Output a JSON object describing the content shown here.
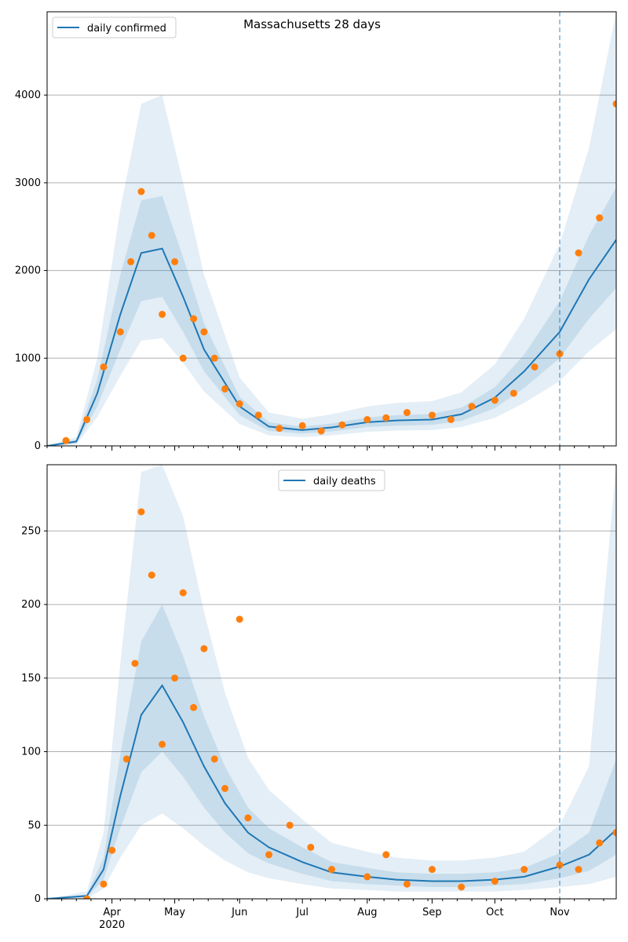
{
  "chart_data": [
    {
      "type": "line",
      "title": "Massachusetts 28 days",
      "xlabel": "",
      "ylabel": "",
      "ylim": [
        0,
        4950
      ],
      "y_ticks": [
        0,
        1000,
        2000,
        3000,
        4000
      ],
      "x_range": [
        "2020-03-01",
        "2020-11-28"
      ],
      "grid": "horizontal",
      "legend_position": "top-left",
      "vline_date": "2020-11-01",
      "colors": {
        "line": "#1f77b4",
        "points": "#ff7f0e",
        "band": "#1f77b4",
        "grid": "#b0b0b0"
      },
      "series": [
        {
          "name": "daily confirmed",
          "x": [
            "2020-03-01",
            "2020-03-15",
            "2020-03-25",
            "2020-04-05",
            "2020-04-15",
            "2020-04-25",
            "2020-05-05",
            "2020-05-15",
            "2020-06-01",
            "2020-06-15",
            "2020-07-01",
            "2020-07-15",
            "2020-08-01",
            "2020-08-15",
            "2020-09-01",
            "2020-09-15",
            "2020-10-01",
            "2020-10-15",
            "2020-11-01",
            "2020-11-15",
            "2020-11-28"
          ],
          "values": [
            0,
            50,
            600,
            1500,
            2200,
            2250,
            1700,
            1100,
            450,
            220,
            180,
            210,
            270,
            290,
            300,
            360,
            550,
            850,
            1300,
            1900,
            2350
          ]
        }
      ],
      "points": {
        "x": [
          "2020-03-10",
          "2020-03-20",
          "2020-03-28",
          "2020-04-05",
          "2020-04-10",
          "2020-04-15",
          "2020-04-20",
          "2020-04-25",
          "2020-05-01",
          "2020-05-05",
          "2020-05-10",
          "2020-05-15",
          "2020-05-20",
          "2020-05-25",
          "2020-06-01",
          "2020-06-10",
          "2020-06-20",
          "2020-07-01",
          "2020-07-10",
          "2020-07-20",
          "2020-08-01",
          "2020-08-10",
          "2020-08-20",
          "2020-09-01",
          "2020-09-10",
          "2020-09-20",
          "2020-10-01",
          "2020-10-10",
          "2020-10-20",
          "2020-11-01",
          "2020-11-10",
          "2020-11-20",
          "2020-11-28"
        ],
        "values": [
          60,
          300,
          900,
          1300,
          2100,
          2900,
          2400,
          1500,
          2100,
          1000,
          1450,
          1300,
          1000,
          650,
          480,
          350,
          200,
          230,
          170,
          240,
          300,
          320,
          380,
          350,
          300,
          450,
          520,
          600,
          900,
          1050,
          2200,
          2600,
          3900
        ]
      },
      "bands": {
        "x": [
          "2020-03-01",
          "2020-03-15",
          "2020-03-25",
          "2020-04-05",
          "2020-04-15",
          "2020-04-25",
          "2020-05-05",
          "2020-05-15",
          "2020-06-01",
          "2020-06-15",
          "2020-07-01",
          "2020-07-15",
          "2020-08-01",
          "2020-08-15",
          "2020-09-01",
          "2020-09-15",
          "2020-10-01",
          "2020-10-15",
          "2020-11-01",
          "2020-11-15",
          "2020-11-28"
        ],
        "inner_low": [
          0,
          30,
          450,
          1100,
          1650,
          1700,
          1300,
          850,
          350,
          170,
          140,
          165,
          215,
          230,
          240,
          285,
          430,
          660,
          1000,
          1450,
          1800
        ],
        "inner_high": [
          0,
          70,
          760,
          1950,
          2800,
          2850,
          2150,
          1400,
          560,
          270,
          220,
          255,
          325,
          350,
          365,
          435,
          670,
          1040,
          1650,
          2400,
          2950
        ],
        "outer_low": [
          0,
          15,
          330,
          800,
          1200,
          1230,
          950,
          620,
          250,
          120,
          100,
          120,
          160,
          175,
          180,
          215,
          320,
          490,
          740,
          1080,
          1330
        ],
        "outer_high": [
          0,
          100,
          1000,
          2700,
          3900,
          4000,
          3000,
          1950,
          780,
          380,
          310,
          360,
          450,
          490,
          510,
          610,
          930,
          1450,
          2300,
          3400,
          4950
        ]
      }
    },
    {
      "type": "line",
      "title": "",
      "xlabel": "",
      "ylabel": "",
      "ylim": [
        0,
        295
      ],
      "y_ticks": [
        0,
        50,
        100,
        150,
        200,
        250
      ],
      "x_range": [
        "2020-03-01",
        "2020-11-28"
      ],
      "x_tick_labels": [
        "Apr",
        "May",
        "Jun",
        "Jul",
        "Aug",
        "Sep",
        "Oct",
        "Nov"
      ],
      "x_tick_dates": [
        "2020-04-01",
        "2020-05-01",
        "2020-06-01",
        "2020-07-01",
        "2020-08-01",
        "2020-09-01",
        "2020-10-01",
        "2020-11-01"
      ],
      "year_label": "2020",
      "grid": "horizontal",
      "legend_position": "top-center",
      "vline_date": "2020-11-01",
      "colors": {
        "line": "#1f77b4",
        "points": "#ff7f0e",
        "band": "#1f77b4",
        "grid": "#b0b0b0"
      },
      "series": [
        {
          "name": "daily deaths",
          "x": [
            "2020-03-01",
            "2020-03-20",
            "2020-03-28",
            "2020-04-05",
            "2020-04-15",
            "2020-04-25",
            "2020-05-05",
            "2020-05-15",
            "2020-05-25",
            "2020-06-05",
            "2020-06-15",
            "2020-07-01",
            "2020-07-15",
            "2020-08-01",
            "2020-08-15",
            "2020-09-01",
            "2020-09-15",
            "2020-10-01",
            "2020-10-15",
            "2020-11-01",
            "2020-11-15",
            "2020-11-28"
          ],
          "values": [
            0,
            2,
            20,
            70,
            125,
            145,
            120,
            90,
            65,
            45,
            35,
            25,
            18,
            15,
            13,
            12,
            12,
            13,
            15,
            22,
            30,
            47
          ]
        }
      ],
      "points": {
        "x": [
          "2020-03-20",
          "2020-03-28",
          "2020-04-01",
          "2020-04-08",
          "2020-04-12",
          "2020-04-15",
          "2020-04-20",
          "2020-04-25",
          "2020-05-01",
          "2020-05-05",
          "2020-05-10",
          "2020-05-15",
          "2020-05-20",
          "2020-05-25",
          "2020-06-01",
          "2020-06-05",
          "2020-06-15",
          "2020-06-25",
          "2020-07-05",
          "2020-07-15",
          "2020-08-01",
          "2020-08-10",
          "2020-08-20",
          "2020-09-01",
          "2020-09-15",
          "2020-10-01",
          "2020-10-15",
          "2020-11-01",
          "2020-11-10",
          "2020-11-20",
          "2020-11-28"
        ],
        "values": [
          0,
          10,
          33,
          95,
          160,
          263,
          220,
          105,
          150,
          208,
          130,
          170,
          95,
          75,
          190,
          55,
          30,
          50,
          35,
          20,
          15,
          30,
          10,
          20,
          8,
          12,
          20,
          23,
          20,
          38,
          45
        ]
      },
      "bands": {
        "x": [
          "2020-03-01",
          "2020-03-20",
          "2020-03-28",
          "2020-04-05",
          "2020-04-15",
          "2020-04-25",
          "2020-05-05",
          "2020-05-15",
          "2020-05-25",
          "2020-06-05",
          "2020-06-15",
          "2020-07-01",
          "2020-07-15",
          "2020-08-01",
          "2020-08-15",
          "2020-09-01",
          "2020-09-15",
          "2020-10-01",
          "2020-10-15",
          "2020-11-01",
          "2020-11-15",
          "2020-11-28"
        ],
        "inner_low": [
          0,
          1,
          13,
          48,
          86,
          100,
          83,
          62,
          45,
          31,
          24,
          17,
          12,
          10,
          9,
          8,
          8,
          9,
          10,
          14,
          19,
          30
        ],
        "inner_high": [
          0,
          3,
          28,
          98,
          175,
          200,
          165,
          124,
          90,
          62,
          48,
          35,
          25,
          21,
          18,
          17,
          17,
          18,
          21,
          31,
          45,
          95
        ],
        "outer_low": [
          0,
          0,
          7,
          28,
          50,
          58,
          48,
          36,
          26,
          18,
          14,
          10,
          7,
          6,
          5,
          5,
          5,
          5,
          6,
          8,
          10,
          15
        ],
        "outer_high": [
          0,
          5,
          45,
          160,
          290,
          295,
          260,
          195,
          140,
          96,
          74,
          54,
          38,
          32,
          28,
          26,
          26,
          28,
          32,
          50,
          90,
          295
        ]
      }
    }
  ]
}
